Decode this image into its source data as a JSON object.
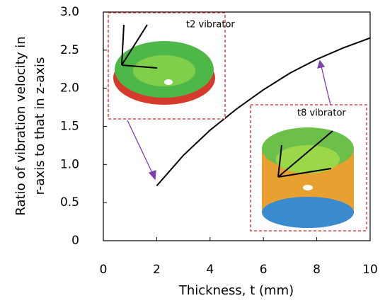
{
  "chart_data": {
    "type": "line",
    "x_label": "Thickness, t (mm)",
    "y_label": [
      "Ratio of vibration velocity in",
      "r-axis to that in z-axis"
    ],
    "annotations": [
      "t2 vibrator",
      "t8 vibrator"
    ],
    "x": [
      2,
      3,
      4,
      5,
      6,
      7,
      8,
      9,
      10
    ],
    "series": [
      {
        "color": "#000000",
        "values": [
          0.72,
          1.12,
          1.45,
          1.73,
          1.98,
          2.2,
          2.38,
          2.53,
          2.66
        ]
      }
    ],
    "xlim": [
      0,
      10
    ],
    "xticks": [
      0,
      2,
      4,
      6,
      8,
      10
    ],
    "ylim": [
      0,
      3
    ],
    "yticks": [
      0,
      0.5,
      {
        "value": 1,
        "label": "1.0"
      },
      1.5,
      {
        "value": 2,
        "label": "2.0"
      },
      2.5,
      {
        "value": 3,
        "label": "3.0"
      }
    ],
    "grid": false
  }
}
